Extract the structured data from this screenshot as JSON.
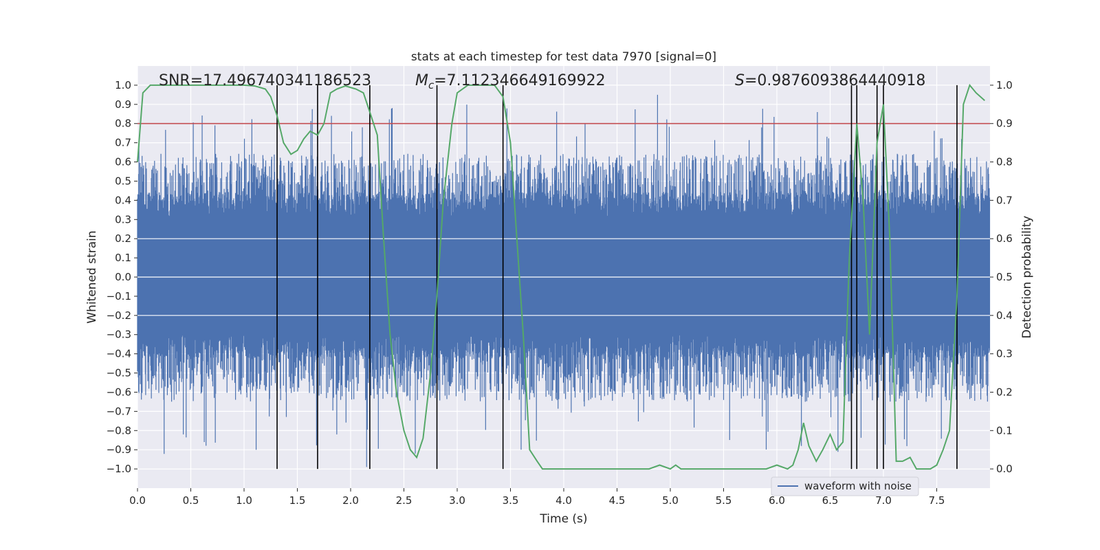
{
  "chart_data": {
    "type": "line",
    "title": "stats at each timestep for test data 7970 [signal=0]",
    "xlabel": "Time (s)",
    "ylabel": "Whitened strain",
    "ylabel_right": "Detection probability",
    "xlim": [
      0.0,
      8.0
    ],
    "ylim": [
      -1.1,
      1.1
    ],
    "ylim_right": [
      -0.05,
      1.05
    ],
    "x_ticks": [
      "0.0",
      "0.5",
      "1.0",
      "1.5",
      "2.0",
      "2.5",
      "3.0",
      "3.5",
      "4.0",
      "4.5",
      "5.0",
      "5.5",
      "6.0",
      "6.5",
      "7.0",
      "7.5"
    ],
    "y_ticks": [
      "1.0",
      "0.9",
      "0.8",
      "0.7",
      "0.6",
      "0.5",
      "0.4",
      "0.3",
      "0.2",
      "0.1",
      "0.0",
      "−0.1",
      "−0.2",
      "−0.3",
      "−0.4",
      "−0.5",
      "−0.6",
      "−0.7",
      "−0.8",
      "−0.9",
      "−1.0"
    ],
    "y_ticks_right": [
      "1.0",
      "0.9",
      "0.8",
      "0.7",
      "0.6",
      "0.5",
      "0.4",
      "0.3",
      "0.2",
      "0.1",
      "0.0"
    ],
    "grid": true,
    "legend": {
      "placement": "lower-right",
      "entries": [
        "waveform with noise"
      ]
    },
    "annotations": {
      "snr": "SNR=17.496740341186523",
      "mc_symbol": "M",
      "mc_sub": "c",
      "mc_value": "=7.112346649169922",
      "s_symbol": "S",
      "s_value": "=0.9876093864440918"
    },
    "threshold": {
      "value_right": 0.9,
      "color": "#c44e52"
    },
    "vertical_markers": [
      1.31,
      1.69,
      2.18,
      2.81,
      3.43,
      6.7,
      6.75,
      6.94,
      7.0,
      7.69
    ],
    "waveform": {
      "name": "waveform with noise",
      "color": "#4c72b0",
      "duration": 8.0,
      "band_center": 0.01,
      "band_halfwidth": 0.36,
      "typical_peak": 0.55,
      "extreme_peak": 0.95,
      "extreme_trough": -0.99
    },
    "detection_probability": {
      "color": "#55a868",
      "x": [
        0.0,
        0.05,
        0.12,
        0.2,
        0.3,
        1.0,
        1.1,
        1.2,
        1.25,
        1.31,
        1.37,
        1.44,
        1.5,
        1.56,
        1.62,
        1.69,
        1.75,
        1.81,
        1.87,
        1.95,
        2.05,
        2.12,
        2.18,
        2.25,
        2.31,
        2.37,
        2.43,
        2.5,
        2.56,
        2.62,
        2.68,
        2.75,
        2.81,
        2.87,
        2.95,
        3.0,
        3.1,
        3.2,
        3.35,
        3.43,
        3.5,
        3.56,
        3.62,
        3.68,
        3.75,
        3.8,
        3.95,
        4.1,
        4.3,
        4.5,
        4.7,
        4.8,
        4.9,
        5.0,
        5.05,
        5.1,
        5.2,
        5.5,
        5.7,
        5.9,
        6.0,
        6.1,
        6.15,
        6.2,
        6.25,
        6.3,
        6.37,
        6.43,
        6.5,
        6.56,
        6.62,
        6.68,
        6.75,
        6.81,
        6.87,
        6.94,
        7.0,
        7.06,
        7.12,
        7.18,
        7.25,
        7.31,
        7.37,
        7.44,
        7.5,
        7.56,
        7.62,
        7.69,
        7.75,
        7.81,
        7.87,
        7.95
      ],
      "y": [
        0.8,
        0.98,
        1.0,
        1.0,
        1.0,
        1.0,
        0.998,
        0.99,
        0.97,
        0.92,
        0.85,
        0.82,
        0.83,
        0.86,
        0.88,
        0.87,
        0.9,
        0.98,
        0.99,
        0.998,
        0.99,
        0.98,
        0.93,
        0.87,
        0.6,
        0.35,
        0.2,
        0.1,
        0.05,
        0.03,
        0.08,
        0.25,
        0.45,
        0.7,
        0.9,
        0.98,
        1.0,
        1.0,
        1.0,
        0.97,
        0.85,
        0.6,
        0.35,
        0.05,
        0.02,
        0.0,
        -0.0,
        0.0,
        -0.0,
        0.0,
        0.0,
        -0.0,
        0.01,
        0.0,
        0.01,
        0.0,
        0.0,
        -0.0,
        -0.0,
        -0.0,
        0.01,
        0.0,
        0.01,
        0.05,
        0.12,
        0.06,
        0.02,
        0.05,
        0.09,
        0.05,
        0.07,
        0.55,
        0.9,
        0.7,
        0.35,
        0.85,
        0.95,
        0.6,
        0.02,
        0.02,
        0.03,
        0.0,
        0.0,
        -0.0,
        0.01,
        0.05,
        0.1,
        0.45,
        0.95,
        1.0,
        0.98,
        0.96
      ]
    }
  }
}
